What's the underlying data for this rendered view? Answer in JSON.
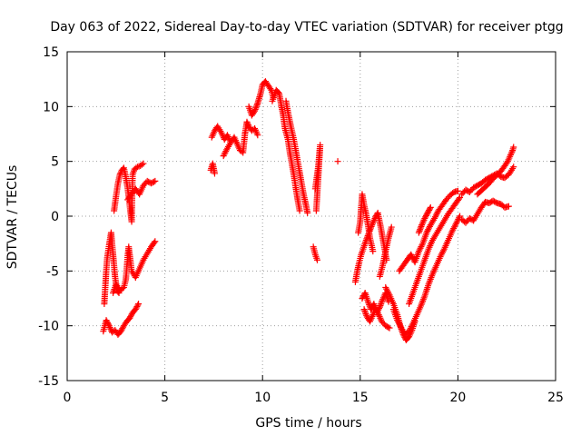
{
  "chart_data": {
    "type": "scatter",
    "title": "Day 063 of 2022, Sidereal Day-to-day VTEC variation (SDTVAR) for receiver ptgg",
    "xlabel": "GPS time / hours",
    "ylabel": "SDTVAR / TECUs",
    "xlim": [
      0,
      25
    ],
    "ylim": [
      -15,
      15
    ],
    "xticks": [
      0,
      5,
      10,
      15,
      20,
      25
    ],
    "yticks": [
      -15,
      -10,
      -5,
      0,
      5,
      10,
      15
    ],
    "grid": true,
    "marker": "+",
    "color": "#ff0000",
    "segments": [
      [
        [
          1.85,
          -10.5
        ],
        [
          2.0,
          -9.5
        ],
        [
          2.15,
          -10.0
        ],
        [
          2.3,
          -10.6
        ],
        [
          2.45,
          -10.4
        ],
        [
          2.6,
          -10.8
        ],
        [
          2.75,
          -10.5
        ],
        [
          2.9,
          -10.0
        ],
        [
          3.05,
          -9.6
        ],
        [
          3.2,
          -9.3
        ],
        [
          3.35,
          -8.8
        ],
        [
          3.5,
          -8.5
        ],
        [
          3.65,
          -8.0
        ]
      ],
      [
        [
          1.9,
          -8.0
        ],
        [
          1.95,
          -6.5
        ],
        [
          2.0,
          -5.0
        ],
        [
          2.05,
          -3.8
        ],
        [
          2.15,
          -2.6
        ],
        [
          2.25,
          -1.5
        ],
        [
          2.35,
          -3.5
        ],
        [
          2.45,
          -5.5
        ],
        [
          2.55,
          -6.8
        ],
        [
          2.65,
          -7.0
        ]
      ],
      [
        [
          2.35,
          -7.0
        ],
        [
          2.5,
          -6.2
        ],
        [
          2.7,
          -6.8
        ],
        [
          2.9,
          -6.5
        ],
        [
          3.0,
          -5.8
        ],
        [
          3.05,
          -4.8
        ],
        [
          3.1,
          -3.6
        ],
        [
          3.15,
          -2.8
        ],
        [
          3.2,
          -3.5
        ],
        [
          3.3,
          -5.0
        ],
        [
          3.5,
          -5.6
        ],
        [
          3.7,
          -4.8
        ],
        [
          3.9,
          -4.0
        ],
        [
          4.1,
          -3.4
        ],
        [
          4.3,
          -2.8
        ],
        [
          4.5,
          -2.3
        ]
      ],
      [
        [
          2.4,
          0.5
        ],
        [
          2.5,
          1.8
        ],
        [
          2.6,
          3.0
        ],
        [
          2.7,
          3.8
        ],
        [
          2.8,
          4.2
        ],
        [
          2.9,
          4.4
        ],
        [
          3.0,
          3.6
        ],
        [
          3.1,
          2.5
        ],
        [
          3.2,
          1.0
        ],
        [
          3.3,
          -0.5
        ],
        [
          3.35,
          3.8
        ],
        [
          3.45,
          4.3
        ],
        [
          3.6,
          4.5
        ],
        [
          3.75,
          4.6
        ],
        [
          3.9,
          4.8
        ]
      ],
      [
        [
          3.1,
          1.5
        ],
        [
          3.3,
          2.0
        ],
        [
          3.5,
          2.5
        ],
        [
          3.7,
          2.0
        ],
        [
          3.9,
          2.8
        ],
        [
          4.1,
          3.2
        ],
        [
          4.3,
          3.0
        ],
        [
          4.5,
          3.2
        ]
      ],
      [
        [
          7.35,
          4.2
        ],
        [
          7.45,
          4.8
        ],
        [
          7.55,
          3.9
        ]
      ],
      [
        [
          7.4,
          7.2
        ],
        [
          7.55,
          7.8
        ],
        [
          7.7,
          8.2
        ],
        [
          7.9,
          7.6
        ],
        [
          8.05,
          7.0
        ],
        [
          8.2,
          7.4
        ],
        [
          8.35,
          6.8
        ]
      ],
      [
        [
          8.0,
          5.5
        ],
        [
          8.2,
          6.2
        ],
        [
          8.4,
          6.8
        ],
        [
          8.55,
          7.2
        ],
        [
          8.7,
          6.6
        ],
        [
          8.85,
          6.0
        ],
        [
          9.0,
          5.8
        ],
        [
          9.1,
          7.5
        ],
        [
          9.2,
          8.6
        ],
        [
          9.3,
          8.2
        ],
        [
          9.45,
          7.8
        ],
        [
          9.6,
          8.0
        ],
        [
          9.75,
          7.4
        ]
      ],
      [
        [
          9.3,
          10.0
        ],
        [
          9.45,
          9.2
        ],
        [
          9.6,
          9.6
        ],
        [
          9.75,
          10.3
        ],
        [
          9.9,
          11.2
        ],
        [
          10.0,
          12.0
        ],
        [
          10.15,
          12.3
        ],
        [
          10.3,
          11.9
        ],
        [
          10.45,
          11.5
        ],
        [
          10.55,
          10.8
        ]
      ],
      [
        [
          10.5,
          10.5
        ],
        [
          10.7,
          11.5
        ],
        [
          10.85,
          11.2
        ],
        [
          10.95,
          10.2
        ],
        [
          11.05,
          9.3
        ],
        [
          11.15,
          8.0
        ],
        [
          11.3,
          7.0
        ],
        [
          11.4,
          5.8
        ],
        [
          11.5,
          4.8
        ],
        [
          11.6,
          3.8
        ],
        [
          11.7,
          2.6
        ],
        [
          11.8,
          1.5
        ],
        [
          11.9,
          0.5
        ]
      ],
      [
        [
          11.2,
          10.5
        ],
        [
          11.3,
          9.5
        ],
        [
          11.45,
          8.2
        ],
        [
          11.6,
          7.0
        ],
        [
          11.7,
          6.0
        ],
        [
          11.8,
          5.0
        ],
        [
          11.9,
          4.0
        ],
        [
          12.0,
          3.0
        ],
        [
          12.1,
          2.0
        ],
        [
          12.2,
          1.2
        ],
        [
          12.3,
          0.3
        ]
      ],
      [
        [
          12.6,
          -2.8
        ],
        [
          12.7,
          -3.5
        ],
        [
          12.8,
          -4.0
        ]
      ],
      [
        [
          12.75,
          0.5
        ],
        [
          12.8,
          2.0
        ],
        [
          12.85,
          3.5
        ],
        [
          12.9,
          5.0
        ],
        [
          12.95,
          6.5
        ],
        [
          12.85,
          4.5
        ],
        [
          12.7,
          2.5
        ]
      ],
      [
        [
          13.85,
          5.0
        ]
      ],
      [
        [
          14.75,
          -6.0
        ],
        [
          14.85,
          -5.0
        ],
        [
          14.95,
          -4.2
        ],
        [
          15.05,
          -3.5
        ],
        [
          15.15,
          -3.0
        ],
        [
          15.3,
          -2.2
        ],
        [
          15.45,
          -1.5
        ],
        [
          15.6,
          -0.8
        ],
        [
          15.75,
          -0.2
        ],
        [
          15.9,
          0.3
        ],
        [
          16.05,
          -1.0
        ],
        [
          16.2,
          -2.5
        ],
        [
          16.35,
          -4.0
        ]
      ],
      [
        [
          14.9,
          -1.5
        ],
        [
          15.0,
          -0.5
        ],
        [
          15.05,
          0.8
        ],
        [
          15.1,
          2.0
        ],
        [
          15.2,
          1.0
        ],
        [
          15.3,
          0.2
        ],
        [
          15.4,
          -0.8
        ],
        [
          15.5,
          -2.0
        ],
        [
          15.65,
          -3.2
        ]
      ],
      [
        [
          15.1,
          -7.5
        ],
        [
          15.25,
          -7.0
        ],
        [
          15.4,
          -7.8
        ],
        [
          15.55,
          -8.5
        ],
        [
          15.7,
          -8.0
        ],
        [
          15.85,
          -8.8
        ],
        [
          16.0,
          -8.3
        ],
        [
          16.15,
          -7.6
        ],
        [
          16.3,
          -7.0
        ],
        [
          16.45,
          -7.8
        ]
      ],
      [
        [
          15.2,
          -8.5
        ],
        [
          15.35,
          -9.2
        ],
        [
          15.5,
          -9.6
        ],
        [
          15.65,
          -9.0
        ],
        [
          15.8,
          -8.4
        ],
        [
          15.95,
          -9.0
        ],
        [
          16.1,
          -9.6
        ],
        [
          16.3,
          -10.0
        ],
        [
          16.5,
          -10.2
        ]
      ],
      [
        [
          16.0,
          -5.5
        ],
        [
          16.15,
          -4.5
        ],
        [
          16.3,
          -3.2
        ],
        [
          16.45,
          -2.0
        ],
        [
          16.6,
          -1.0
        ]
      ],
      [
        [
          16.3,
          -6.5
        ],
        [
          16.5,
          -7.2
        ],
        [
          16.7,
          -8.0
        ],
        [
          16.9,
          -9.0
        ],
        [
          17.05,
          -10.0
        ],
        [
          17.2,
          -10.8
        ],
        [
          17.35,
          -11.3
        ],
        [
          17.5,
          -11.0
        ],
        [
          17.65,
          -10.4
        ],
        [
          17.8,
          -9.6
        ]
      ],
      [
        [
          16.7,
          -8.5
        ],
        [
          16.9,
          -9.5
        ],
        [
          17.1,
          -10.2
        ],
        [
          17.3,
          -10.8
        ],
        [
          17.5,
          -10.5
        ],
        [
          17.7,
          -9.8
        ],
        [
          17.9,
          -9.0
        ],
        [
          18.1,
          -8.2
        ],
        [
          18.3,
          -7.3
        ],
        [
          18.5,
          -6.2
        ],
        [
          18.7,
          -5.3
        ],
        [
          18.9,
          -4.5
        ],
        [
          19.1,
          -3.7
        ],
        [
          19.3,
          -3.0
        ],
        [
          19.5,
          -2.2
        ],
        [
          19.7,
          -1.4
        ],
        [
          19.9,
          -0.7
        ],
        [
          20.1,
          0.0
        ]
      ],
      [
        [
          17.0,
          -5.0
        ],
        [
          17.2,
          -4.5
        ],
        [
          17.4,
          -4.0
        ],
        [
          17.6,
          -3.5
        ],
        [
          17.8,
          -4.2
        ],
        [
          18.0,
          -3.2
        ],
        [
          18.2,
          -2.5
        ],
        [
          18.4,
          -1.5
        ],
        [
          18.6,
          -0.8
        ],
        [
          18.8,
          -0.2
        ],
        [
          19.0,
          0.5
        ],
        [
          19.2,
          1.0
        ],
        [
          19.4,
          1.5
        ],
        [
          19.6,
          1.9
        ],
        [
          19.8,
          2.2
        ],
        [
          20.0,
          2.3
        ]
      ],
      [
        [
          17.5,
          -8.0
        ],
        [
          17.7,
          -7.0
        ],
        [
          17.9,
          -6.0
        ],
        [
          18.1,
          -5.0
        ],
        [
          18.3,
          -4.0
        ],
        [
          18.5,
          -3.0
        ],
        [
          18.7,
          -2.2
        ],
        [
          18.9,
          -1.6
        ],
        [
          19.1,
          -1.0
        ],
        [
          19.3,
          -0.4
        ],
        [
          19.5,
          0.2
        ],
        [
          19.7,
          0.7
        ],
        [
          19.9,
          1.2
        ],
        [
          20.1,
          1.7
        ]
      ],
      [
        [
          18.0,
          -1.5
        ],
        [
          18.15,
          -0.8
        ],
        [
          18.3,
          -0.2
        ],
        [
          18.45,
          0.3
        ],
        [
          18.6,
          0.8
        ]
      ],
      [
        [
          20.2,
          -0.3
        ],
        [
          20.4,
          -0.6
        ],
        [
          20.6,
          -0.2
        ],
        [
          20.8,
          -0.4
        ],
        [
          21.0,
          0.2
        ],
        [
          21.2,
          0.8
        ],
        [
          21.4,
          1.3
        ],
        [
          21.6,
          1.2
        ],
        [
          21.8,
          1.4
        ],
        [
          22.0,
          1.2
        ],
        [
          22.2,
          1.1
        ],
        [
          22.4,
          0.8
        ],
        [
          22.6,
          0.9
        ]
      ],
      [
        [
          20.2,
          2.0
        ],
        [
          20.4,
          2.4
        ],
        [
          20.6,
          2.2
        ],
        [
          20.8,
          2.6
        ],
        [
          21.0,
          2.8
        ],
        [
          21.2,
          3.0
        ],
        [
          21.4,
          3.3
        ],
        [
          21.6,
          3.5
        ],
        [
          21.8,
          3.7
        ],
        [
          22.0,
          3.9
        ],
        [
          22.2,
          3.6
        ],
        [
          22.4,
          3.5
        ],
        [
          22.6,
          3.8
        ],
        [
          22.75,
          4.2
        ],
        [
          22.85,
          4.5
        ]
      ],
      [
        [
          21.0,
          2.0
        ],
        [
          21.3,
          2.5
        ],
        [
          21.6,
          3.0
        ],
        [
          21.9,
          3.6
        ],
        [
          22.2,
          4.1
        ],
        [
          22.4,
          4.6
        ],
        [
          22.55,
          5.0
        ],
        [
          22.7,
          5.6
        ],
        [
          22.8,
          6.0
        ],
        [
          22.85,
          6.3
        ]
      ]
    ]
  }
}
